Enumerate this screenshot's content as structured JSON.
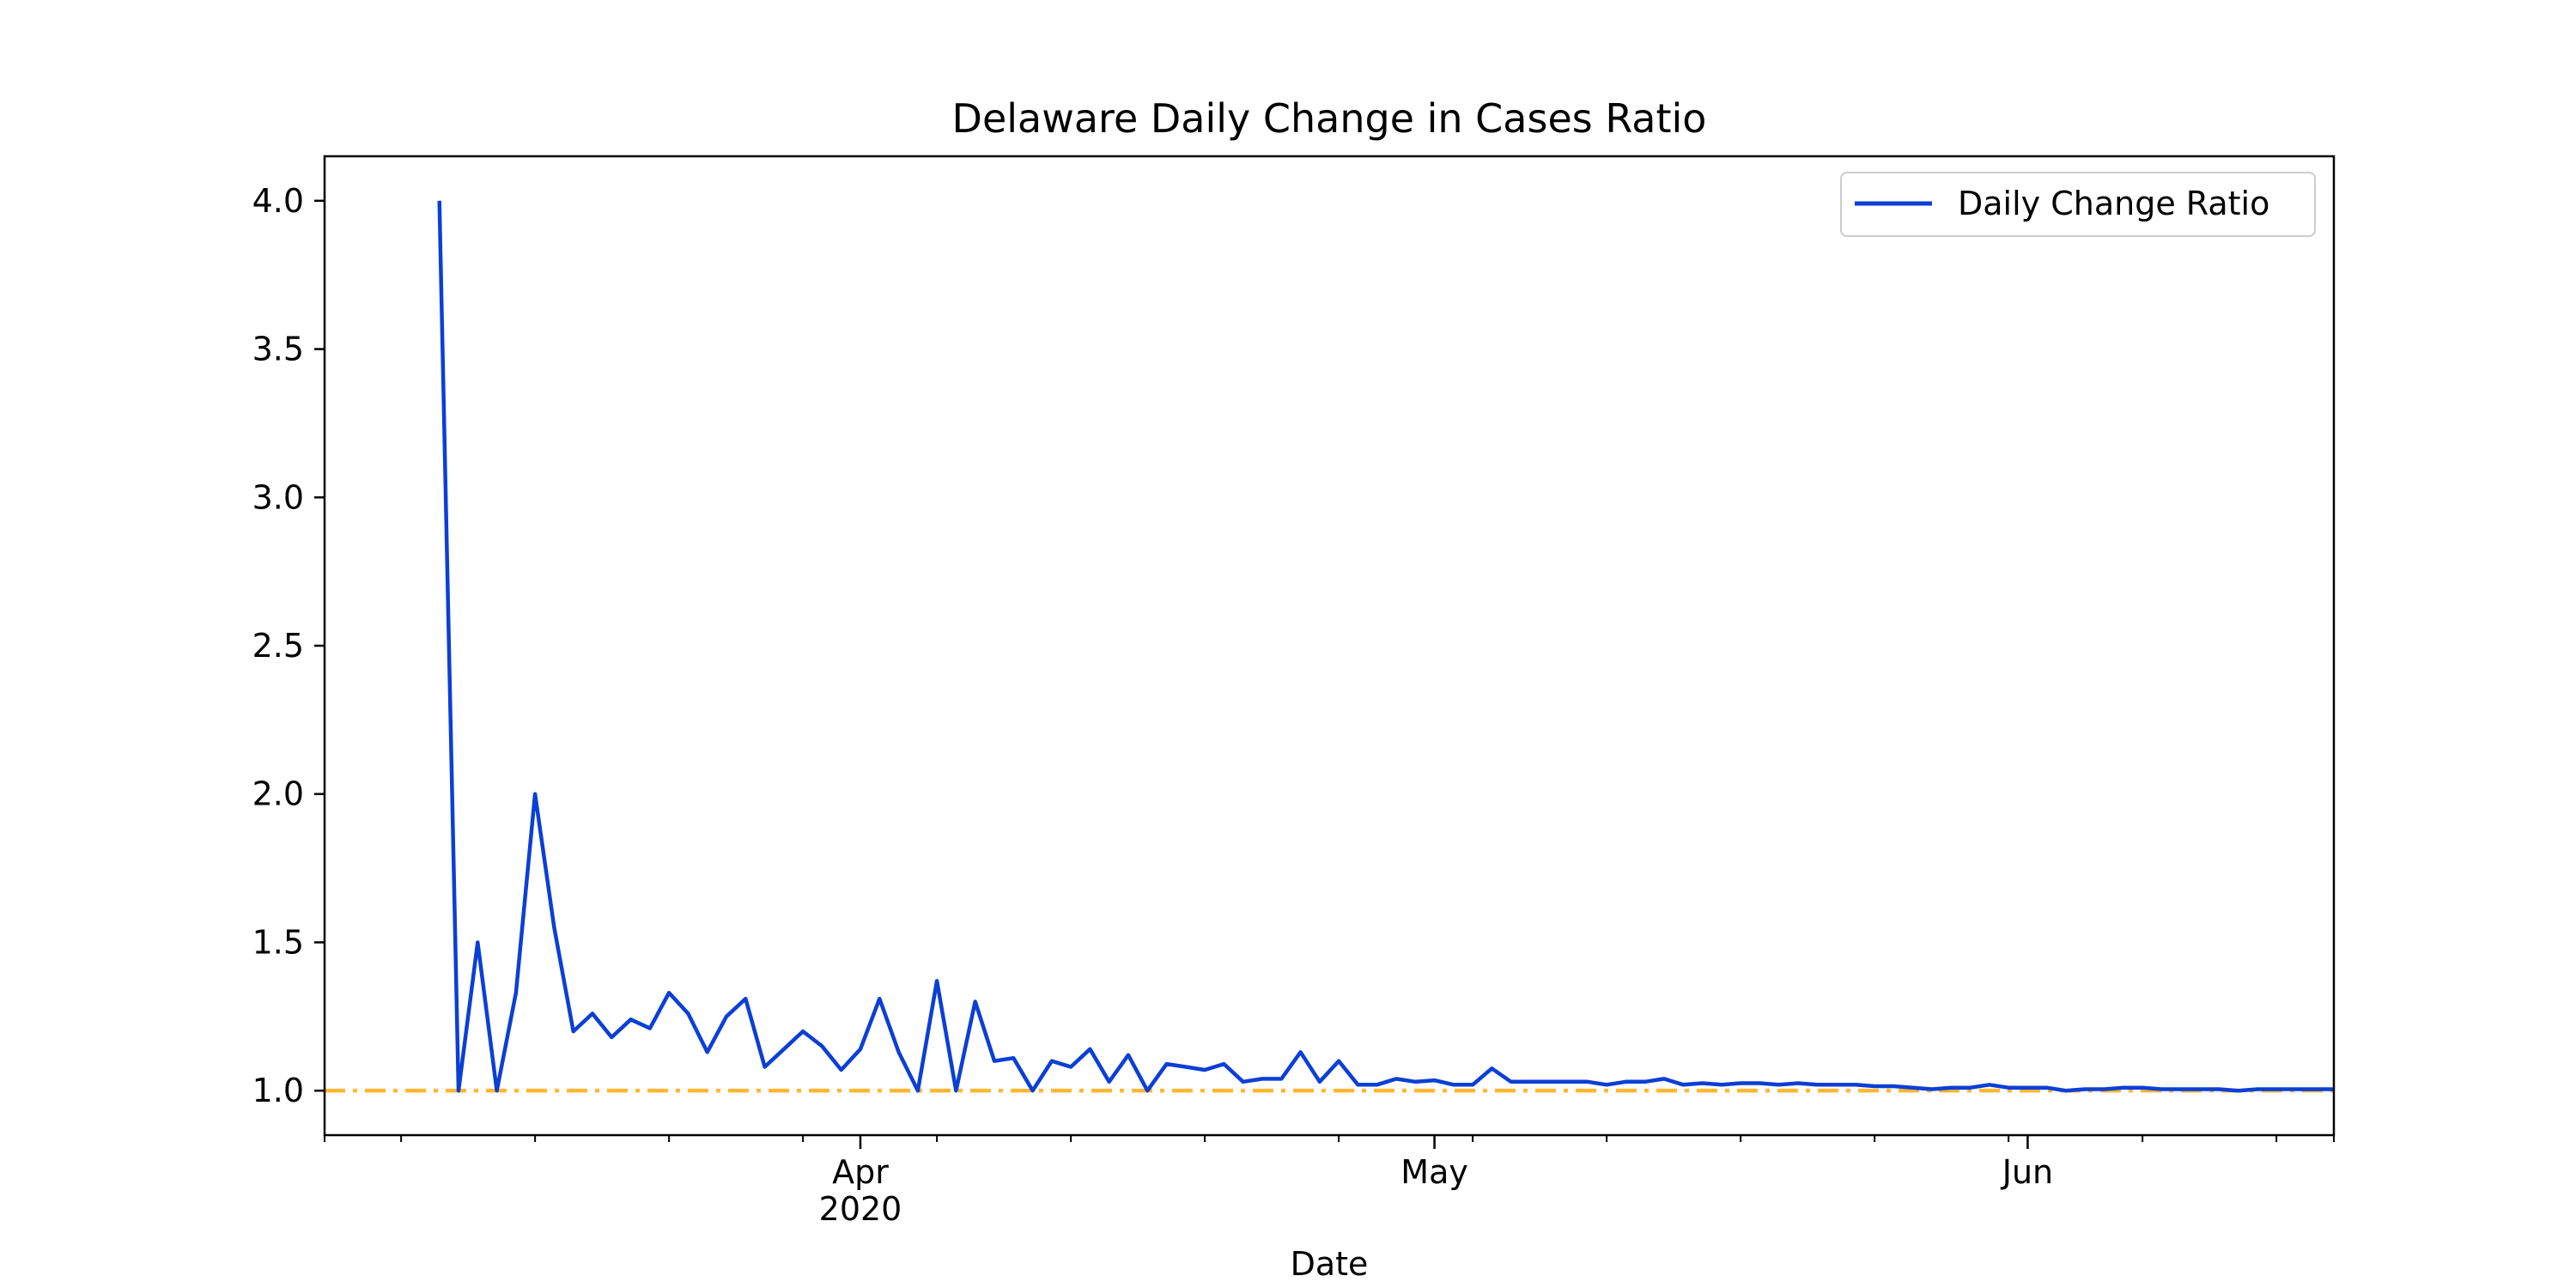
{
  "chart_data": {
    "type": "line",
    "title": "Delaware Daily Change in Cases Ratio",
    "xlabel": "Date",
    "ylabel": "",
    "x_axis": {
      "type": "date",
      "range": [
        "2020-03-04",
        "2020-06-17"
      ],
      "major_ticks": [
        {
          "date": "2020-04-01",
          "label": "Apr",
          "sublabel": "2020"
        },
        {
          "date": "2020-05-01",
          "label": "May",
          "sublabel": ""
        },
        {
          "date": "2020-06-01",
          "label": "Jun",
          "sublabel": ""
        }
      ],
      "minor_ticks": [
        "2020-03-04",
        "2020-03-08",
        "2020-03-15",
        "2020-03-22",
        "2020-03-29",
        "2020-04-05",
        "2020-04-12",
        "2020-04-19",
        "2020-04-26",
        "2020-05-03",
        "2020-05-10",
        "2020-05-17",
        "2020-05-24",
        "2020-05-31",
        "2020-06-07",
        "2020-06-14",
        "2020-06-17"
      ]
    },
    "y_axis": {
      "range": [
        0.85,
        4.15
      ],
      "ticks": [
        1.0,
        1.5,
        2.0,
        2.5,
        3.0,
        3.5,
        4.0
      ],
      "tick_labels": [
        "1.0",
        "1.5",
        "2.0",
        "2.5",
        "3.0",
        "3.5",
        "4.0"
      ]
    },
    "grid": false,
    "legend": {
      "position": "top-right"
    },
    "reference_line": {
      "y": 1.0,
      "color": "#ffb732",
      "style": "dash-dot"
    },
    "series": [
      {
        "name": "Daily Change Ratio",
        "color": "#0b3fd6",
        "start_date": "2020-03-10",
        "step_days": 1,
        "values": [
          4.0,
          1.0,
          1.5,
          1.0,
          1.33,
          2.0,
          1.55,
          1.2,
          1.26,
          1.18,
          1.24,
          1.21,
          1.33,
          1.26,
          1.13,
          1.25,
          1.31,
          1.08,
          1.14,
          1.2,
          1.15,
          1.07,
          1.14,
          1.31,
          1.13,
          1.0,
          1.37,
          1.0,
          1.3,
          1.1,
          1.11,
          1.0,
          1.1,
          1.08,
          1.14,
          1.03,
          1.12,
          1.0,
          1.09,
          1.08,
          1.07,
          1.09,
          1.03,
          1.04,
          1.04,
          1.13,
          1.03,
          1.1,
          1.02,
          1.02,
          1.04,
          1.03,
          1.035,
          1.02,
          1.02,
          1.075,
          1.03,
          1.03,
          1.03,
          1.03,
          1.03,
          1.02,
          1.03,
          1.03,
          1.04,
          1.02,
          1.025,
          1.02,
          1.025,
          1.025,
          1.02,
          1.025,
          1.02,
          1.02,
          1.02,
          1.015,
          1.015,
          1.01,
          1.005,
          1.01,
          1.01,
          1.02,
          1.01,
          1.01,
          1.01,
          1.0,
          1.005,
          1.005,
          1.01,
          1.01,
          1.005,
          1.005,
          1.005,
          1.005,
          1.0,
          1.005,
          1.005,
          1.005,
          1.005,
          1.005
        ]
      }
    ]
  }
}
